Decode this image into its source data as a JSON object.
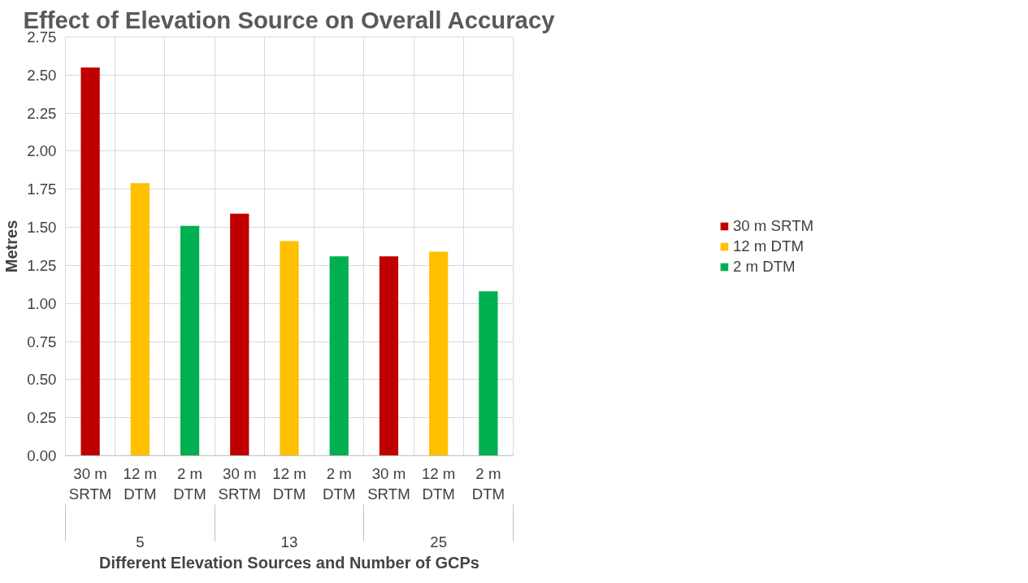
{
  "chart_data": {
    "type": "bar",
    "title": "Effect of Elevation Source on Overall Accuracy",
    "xlabel": "Different Elevation Sources and Number of GCPs",
    "ylabel": "Metres",
    "categories": [
      "30 m SRTM",
      "12 m DTM",
      "2 m DTM",
      "30 m SRTM",
      "12 m DTM",
      "2 m DTM",
      "30 m SRTM",
      "12 m DTM",
      "2 m DTM"
    ],
    "annotations": [
      "5",
      "13",
      "25"
    ],
    "series": [
      {
        "name": "30 m SRTM",
        "color": "#c00000",
        "values": [
          2.55,
          null,
          null,
          1.59,
          null,
          null,
          1.31,
          null,
          null
        ]
      },
      {
        "name": "12 m DTM",
        "color": "#ffc000",
        "values": [
          null,
          1.79,
          null,
          null,
          1.41,
          null,
          null,
          1.34,
          null
        ]
      },
      {
        "name": "2 m DTM",
        "color": "#00b050",
        "values": [
          null,
          null,
          1.51,
          null,
          null,
          1.31,
          null,
          null,
          1.08
        ]
      }
    ],
    "ylim": [
      0,
      2.75
    ],
    "yticks": [
      {
        "value": 0,
        "label": "0.00"
      },
      {
        "value": 0.25,
        "label": "0.25"
      },
      {
        "value": 0.5,
        "label": "0.50"
      },
      {
        "value": 0.75,
        "label": "0.75"
      },
      {
        "value": 1,
        "label": "1.00"
      },
      {
        "value": 1.25,
        "label": "1.25"
      },
      {
        "value": 1.5,
        "label": "1.50"
      },
      {
        "value": 1.75,
        "label": "1.75"
      },
      {
        "value": 2,
        "label": "2.00"
      },
      {
        "value": 2.25,
        "label": "2.25"
      },
      {
        "value": 2.5,
        "label": "2.50"
      },
      {
        "value": 2.75,
        "label": "2.75"
      }
    ],
    "grid": true,
    "legend": "right"
  }
}
